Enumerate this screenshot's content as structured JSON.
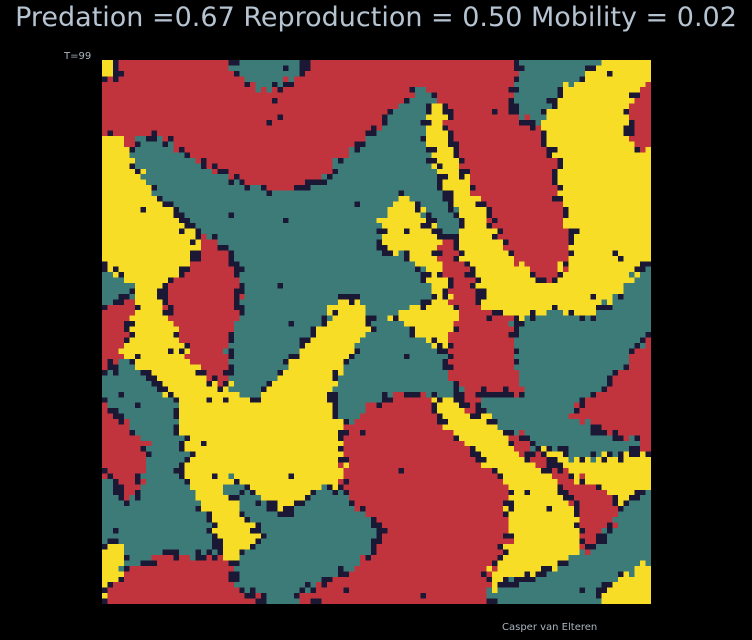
{
  "title": "Predation =0.67  Reproduction = 0.50  Mobility = 0.02",
  "time_label": "T=99",
  "credit": "Casper van Elteren",
  "parameters": {
    "predation": 0.67,
    "reproduction": 0.5,
    "mobility": 0.02
  },
  "time_step": 99,
  "lattice": {
    "cols": 100,
    "rows": 100,
    "states": [
      "empty",
      "teal",
      "red",
      "yellow"
    ],
    "state_counts_approx": {
      "teal": 0.34,
      "red": 0.3,
      "yellow": 0.3,
      "empty": 0.06
    }
  },
  "colors": {
    "background": "#000000",
    "text": "#b6c4d2",
    "small_text": "#aab4be",
    "empty": "#1b1836",
    "teal": "#3d7b79",
    "red": "#c1343d",
    "yellow": "#f7dd26"
  }
}
